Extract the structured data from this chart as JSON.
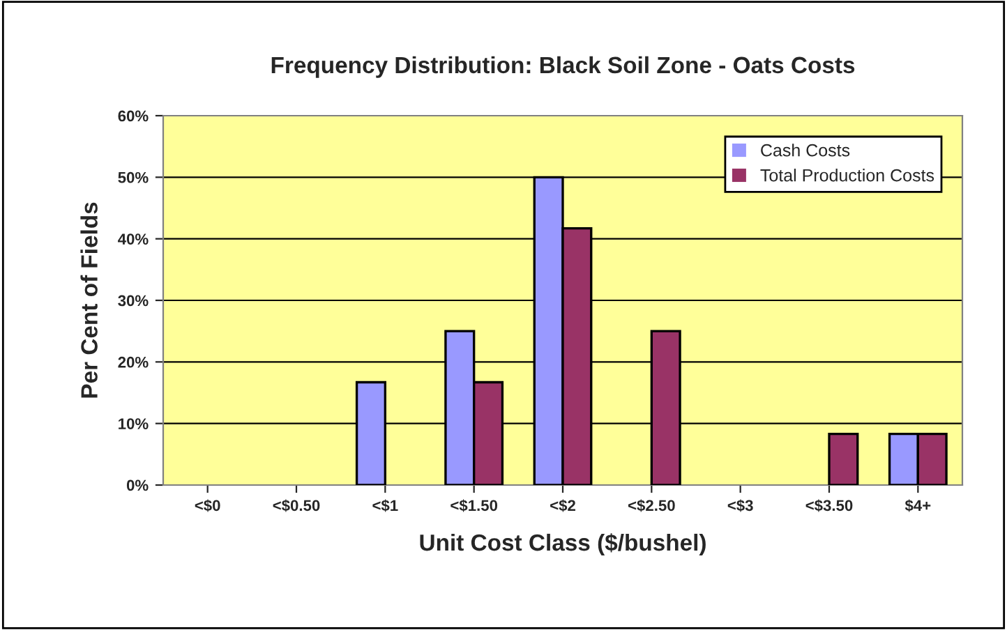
{
  "chart_data": {
    "type": "bar",
    "title": "Frequency Distribution: Black Soil Zone - Oats Costs",
    "xlabel": "Unit Cost Class ($/bushel)",
    "ylabel": "Per Cent of Fields",
    "categories": [
      "<$0",
      "<$0.50",
      "<$1",
      "<$1.50",
      "<$2",
      "<$2.50",
      "<$3",
      "<$3.50",
      "$4+"
    ],
    "series": [
      {
        "name": "Cash Costs",
        "color": "#9999ff",
        "values": [
          0,
          0,
          16.7,
          25,
          50,
          0,
          0,
          0,
          8.3
        ]
      },
      {
        "name": "Total Production Costs",
        "color": "#993366",
        "values": [
          0,
          0,
          0,
          16.7,
          41.7,
          25,
          0,
          8.3,
          8.3
        ]
      }
    ],
    "ylim": [
      0,
      60
    ],
    "yticks": [
      {
        "value": 0,
        "label": "0%"
      },
      {
        "value": 10,
        "label": "10%"
      },
      {
        "value": 20,
        "label": "20%"
      },
      {
        "value": 30,
        "label": "30%"
      },
      {
        "value": 40,
        "label": "40%"
      },
      {
        "value": 50,
        "label": "50%"
      },
      {
        "value": 60,
        "label": "60%"
      }
    ],
    "grid": "y",
    "legend": "top right"
  }
}
